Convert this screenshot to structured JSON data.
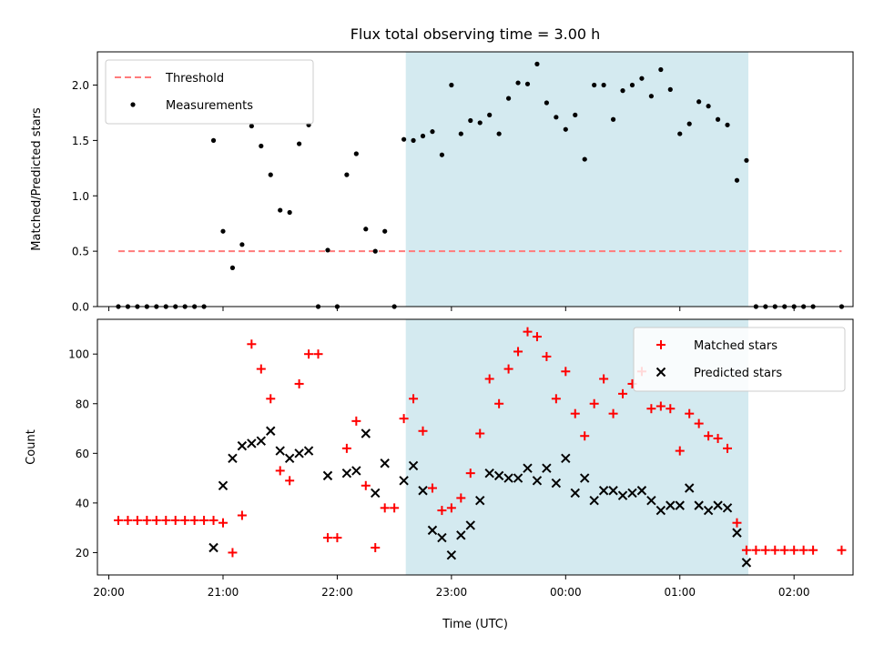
{
  "chart_data": {
    "type": "scatter",
    "title": "Flux total observing time = 3.00 h",
    "xlabel": "Time (UTC)",
    "x_ticks": [
      "20:00",
      "21:00",
      "22:00",
      "23:00",
      "00:00",
      "01:00",
      "02:00"
    ],
    "highlight_span": {
      "from": "22:36",
      "to": "01:36",
      "color": "#d4eaf0"
    },
    "panels": [
      {
        "ylabel": "Matched/Predicted stars",
        "ylim": [
          0,
          2.3
        ],
        "yticks": [
          0.0,
          0.5,
          1.0,
          1.5,
          2.0
        ],
        "ytick_labels": [
          "0.0",
          "0.5",
          "1.0",
          "1.5",
          "2.0"
        ],
        "legend": {
          "position": "top-left",
          "entries": [
            {
              "label": "Threshold",
              "marker": "dashed-line",
              "color": "#ff7b7b"
            },
            {
              "label": "Measurements",
              "marker": "dot",
              "color": "#000000"
            }
          ]
        },
        "threshold": {
          "name": "Threshold",
          "value": 0.5,
          "from": "20:05",
          "to": "02:25",
          "color": "#ff7b7b"
        },
        "series": [
          {
            "name": "Measurements",
            "marker": "dot",
            "color": "#000000",
            "points": [
              [
                "20:05",
                0.0
              ],
              [
                "20:10",
                0.0
              ],
              [
                "20:15",
                0.0
              ],
              [
                "20:20",
                0.0
              ],
              [
                "20:25",
                0.0
              ],
              [
                "20:30",
                0.0
              ],
              [
                "20:35",
                0.0
              ],
              [
                "20:40",
                0.0
              ],
              [
                "20:45",
                0.0
              ],
              [
                "20:50",
                0.0
              ],
              [
                "20:55",
                1.5
              ],
              [
                "21:00",
                0.68
              ],
              [
                "21:05",
                0.35
              ],
              [
                "21:10",
                0.56
              ],
              [
                "21:15",
                1.63
              ],
              [
                "21:20",
                1.45
              ],
              [
                "21:25",
                1.19
              ],
              [
                "21:30",
                0.87
              ],
              [
                "21:35",
                0.85
              ],
              [
                "21:40",
                1.47
              ],
              [
                "21:45",
                1.64
              ],
              [
                "21:50",
                0.0
              ],
              [
                "21:55",
                0.51
              ],
              [
                "22:00",
                0.0
              ],
              [
                "22:05",
                1.19
              ],
              [
                "22:10",
                1.38
              ],
              [
                "22:15",
                0.7
              ],
              [
                "22:20",
                0.5
              ],
              [
                "22:25",
                0.68
              ],
              [
                "22:30",
                0.0
              ],
              [
                "22:35",
                1.51
              ],
              [
                "22:40",
                1.5
              ],
              [
                "22:45",
                1.54
              ],
              [
                "22:50",
                1.58
              ],
              [
                "22:55",
                1.37
              ],
              [
                "23:00",
                2.0
              ],
              [
                "23:05",
                1.56
              ],
              [
                "23:10",
                1.68
              ],
              [
                "23:15",
                1.66
              ],
              [
                "23:20",
                1.73
              ],
              [
                "23:25",
                1.56
              ],
              [
                "23:30",
                1.88
              ],
              [
                "23:35",
                2.02
              ],
              [
                "23:40",
                2.01
              ],
              [
                "23:45",
                2.19
              ],
              [
                "23:50",
                1.84
              ],
              [
                "23:55",
                1.71
              ],
              [
                "00:00",
                1.6
              ],
              [
                "00:05",
                1.73
              ],
              [
                "00:10",
                1.33
              ],
              [
                "00:15",
                2.0
              ],
              [
                "00:20",
                2.0
              ],
              [
                "00:25",
                1.69
              ],
              [
                "00:30",
                1.95
              ],
              [
                "00:35",
                2.0
              ],
              [
                "00:40",
                2.06
              ],
              [
                "00:45",
                1.9
              ],
              [
                "00:50",
                2.14
              ],
              [
                "00:55",
                1.96
              ],
              [
                "01:00",
                1.56
              ],
              [
                "01:05",
                1.65
              ],
              [
                "01:10",
                1.85
              ],
              [
                "01:15",
                1.81
              ],
              [
                "01:20",
                1.69
              ],
              [
                "01:25",
                1.64
              ],
              [
                "01:30",
                1.14
              ],
              [
                "01:35",
                1.32
              ],
              [
                "01:40",
                0.0
              ],
              [
                "01:45",
                0.0
              ],
              [
                "01:50",
                0.0
              ],
              [
                "01:55",
                0.0
              ],
              [
                "02:00",
                0.0
              ],
              [
                "02:05",
                0.0
              ],
              [
                "02:10",
                0.0
              ],
              [
                "02:25",
                0.0
              ]
            ]
          }
        ]
      },
      {
        "ylabel": "Count",
        "ylim": [
          11,
          114
        ],
        "yticks": [
          20,
          40,
          60,
          80,
          100
        ],
        "ytick_labels": [
          "20",
          "40",
          "60",
          "80",
          "100"
        ],
        "legend": {
          "position": "top-right",
          "entries": [
            {
              "label": "Matched stars",
              "marker": "plus",
              "color": "#ff0000"
            },
            {
              "label": "Predicted stars",
              "marker": "x",
              "color": "#000000"
            }
          ]
        },
        "series": [
          {
            "name": "Matched stars",
            "marker": "plus",
            "color": "#ff0000",
            "points": [
              [
                "20:05",
                33
              ],
              [
                "20:10",
                33
              ],
              [
                "20:15",
                33
              ],
              [
                "20:20",
                33
              ],
              [
                "20:25",
                33
              ],
              [
                "20:30",
                33
              ],
              [
                "20:35",
                33
              ],
              [
                "20:40",
                33
              ],
              [
                "20:45",
                33
              ],
              [
                "20:50",
                33
              ],
              [
                "20:55",
                33
              ],
              [
                "21:00",
                32
              ],
              [
                "21:05",
                20
              ],
              [
                "21:10",
                35
              ],
              [
                "21:15",
                104
              ],
              [
                "21:20",
                94
              ],
              [
                "21:25",
                82
              ],
              [
                "21:30",
                53
              ],
              [
                "21:35",
                49
              ],
              [
                "21:40",
                88
              ],
              [
                "21:45",
                100
              ],
              [
                "21:50",
                100
              ],
              [
                "21:55",
                26
              ],
              [
                "22:00",
                26
              ],
              [
                "22:05",
                62
              ],
              [
                "22:10",
                73
              ],
              [
                "22:15",
                47
              ],
              [
                "22:20",
                22
              ],
              [
                "22:25",
                38
              ],
              [
                "22:30",
                38
              ],
              [
                "22:35",
                74
              ],
              [
                "22:40",
                82
              ],
              [
                "22:45",
                69
              ],
              [
                "22:50",
                46
              ],
              [
                "22:55",
                37
              ],
              [
                "23:00",
                38
              ],
              [
                "23:05",
                42
              ],
              [
                "23:10",
                52
              ],
              [
                "23:15",
                68
              ],
              [
                "23:20",
                90
              ],
              [
                "23:25",
                80
              ],
              [
                "23:30",
                94
              ],
              [
                "23:35",
                101
              ],
              [
                "23:40",
                109
              ],
              [
                "23:45",
                107
              ],
              [
                "23:50",
                99
              ],
              [
                "23:55",
                82
              ],
              [
                "00:00",
                93
              ],
              [
                "00:05",
                76
              ],
              [
                "00:10",
                67
              ],
              [
                "00:15",
                80
              ],
              [
                "00:20",
                90
              ],
              [
                "00:25",
                76
              ],
              [
                "00:30",
                84
              ],
              [
                "00:35",
                88
              ],
              [
                "00:40",
                93
              ],
              [
                "00:45",
                78
              ],
              [
                "00:50",
                79
              ],
              [
                "00:55",
                78
              ],
              [
                "01:00",
                61
              ],
              [
                "01:05",
                76
              ],
              [
                "01:10",
                72
              ],
              [
                "01:15",
                67
              ],
              [
                "01:20",
                66
              ],
              [
                "01:25",
                62
              ],
              [
                "01:30",
                32
              ],
              [
                "01:35",
                21
              ],
              [
                "01:40",
                21
              ],
              [
                "01:45",
                21
              ],
              [
                "01:50",
                21
              ],
              [
                "01:55",
                21
              ],
              [
                "02:00",
                21
              ],
              [
                "02:05",
                21
              ],
              [
                "02:10",
                21
              ],
              [
                "02:25",
                21
              ]
            ]
          },
          {
            "name": "Predicted stars",
            "marker": "x",
            "color": "#000000",
            "points": [
              [
                "20:55",
                22
              ],
              [
                "21:00",
                47
              ],
              [
                "21:05",
                58
              ],
              [
                "21:10",
                63
              ],
              [
                "21:15",
                64
              ],
              [
                "21:20",
                65
              ],
              [
                "21:25",
                69
              ],
              [
                "21:30",
                61
              ],
              [
                "21:35",
                58
              ],
              [
                "21:40",
                60
              ],
              [
                "21:45",
                61
              ],
              [
                "21:55",
                51
              ],
              [
                "22:05",
                52
              ],
              [
                "22:10",
                53
              ],
              [
                "22:15",
                68
              ],
              [
                "22:20",
                44
              ],
              [
                "22:25",
                56
              ],
              [
                "22:35",
                49
              ],
              [
                "22:40",
                55
              ],
              [
                "22:45",
                45
              ],
              [
                "22:50",
                29
              ],
              [
                "22:55",
                26
              ],
              [
                "23:00",
                19
              ],
              [
                "23:05",
                27
              ],
              [
                "23:10",
                31
              ],
              [
                "23:15",
                41
              ],
              [
                "23:20",
                52
              ],
              [
                "23:25",
                51
              ],
              [
                "23:30",
                50
              ],
              [
                "23:35",
                50
              ],
              [
                "23:40",
                54
              ],
              [
                "23:45",
                49
              ],
              [
                "23:50",
                54
              ],
              [
                "23:55",
                48
              ],
              [
                "00:00",
                58
              ],
              [
                "00:05",
                44
              ],
              [
                "00:10",
                50
              ],
              [
                "00:15",
                41
              ],
              [
                "00:20",
                45
              ],
              [
                "00:25",
                45
              ],
              [
                "00:30",
                43
              ],
              [
                "00:35",
                44
              ],
              [
                "00:40",
                45
              ],
              [
                "00:45",
                41
              ],
              [
                "00:50",
                37
              ],
              [
                "00:55",
                39
              ],
              [
                "01:00",
                39
              ],
              [
                "01:05",
                46
              ],
              [
                "01:10",
                39
              ],
              [
                "01:15",
                37
              ],
              [
                "01:20",
                39
              ],
              [
                "01:25",
                38
              ],
              [
                "01:30",
                28
              ],
              [
                "01:35",
                16
              ]
            ]
          }
        ]
      }
    ]
  }
}
